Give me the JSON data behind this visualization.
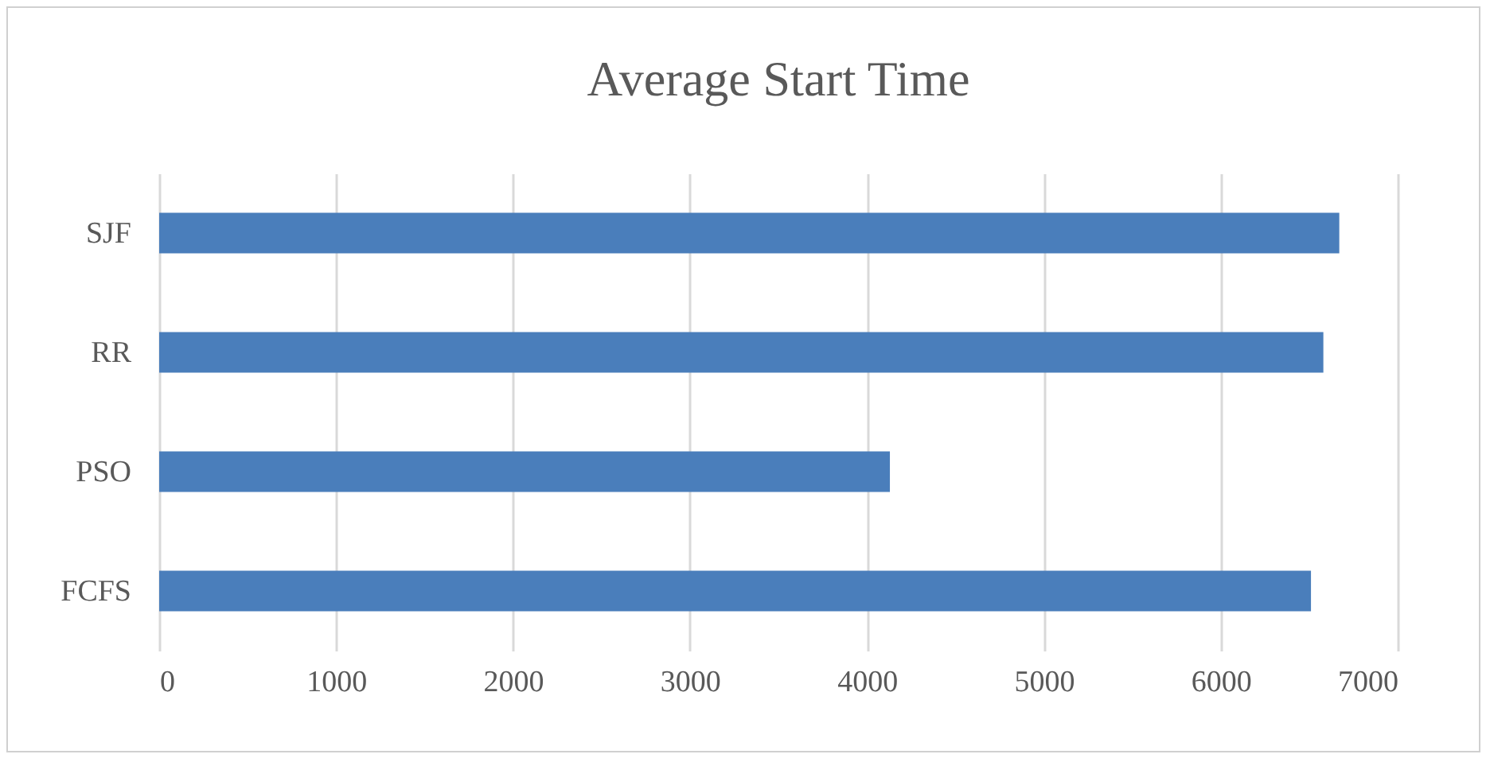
{
  "chart_data": {
    "type": "bar",
    "orientation": "horizontal",
    "title": "Average Start Time",
    "categories": [
      "SJF",
      "RR",
      "PSO",
      "FCFS"
    ],
    "values": [
      6670,
      6580,
      4130,
      6510
    ],
    "color": "#4a7ebb",
    "xlim": [
      0,
      7000
    ],
    "xticks": [
      0,
      1000,
      2000,
      3000,
      4000,
      5000,
      6000,
      7000
    ],
    "grid": "x"
  }
}
